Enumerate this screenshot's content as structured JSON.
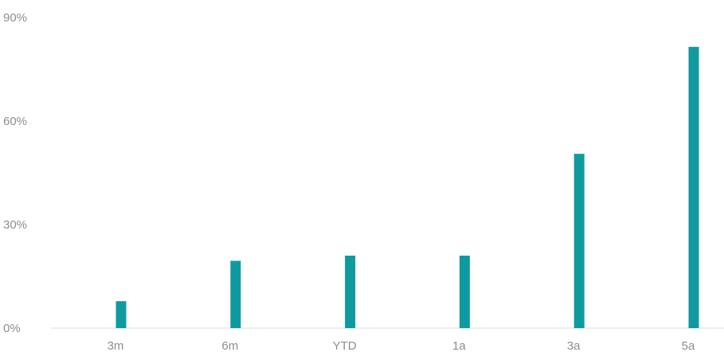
{
  "chart_data": {
    "type": "bar",
    "title": "",
    "xlabel": "",
    "ylabel": "",
    "categories": [
      "3m",
      "6m",
      "YTD",
      "1a",
      "3a",
      "5a"
    ],
    "values": [
      7.8,
      19.5,
      21.0,
      21.0,
      50.5,
      81.5
    ],
    "ylim": [
      0,
      90
    ],
    "yticks": [
      0,
      30,
      60,
      90
    ],
    "ytick_labels": [
      "0%",
      "30%",
      "60%",
      "90%"
    ],
    "grid": "baseline only",
    "legend": "none",
    "bar_color": "#0f9aa0"
  }
}
